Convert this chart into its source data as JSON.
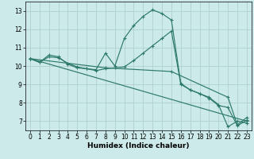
{
  "xlabel": "Humidex (Indice chaleur)",
  "xlim": [
    -0.5,
    23.5
  ],
  "ylim": [
    6.5,
    13.5
  ],
  "xticks": [
    0,
    1,
    2,
    3,
    4,
    5,
    6,
    7,
    8,
    9,
    10,
    11,
    12,
    13,
    14,
    15,
    16,
    17,
    18,
    19,
    20,
    21,
    22,
    23
  ],
  "yticks": [
    7,
    8,
    9,
    10,
    11,
    12,
    13
  ],
  "bg_color": "#cdeaea",
  "grid_color": "#b0cfcf",
  "line_color": "#2d7a6a",
  "line1_x": [
    0,
    1,
    2,
    3,
    4,
    5,
    6,
    7,
    8,
    9,
    10,
    11,
    12,
    13,
    14,
    15,
    16,
    17,
    18,
    19,
    20,
    21,
    22,
    23
  ],
  "line1_y": [
    10.4,
    10.2,
    10.6,
    10.5,
    10.1,
    9.9,
    9.85,
    9.8,
    10.7,
    10.0,
    11.5,
    12.2,
    12.7,
    13.05,
    12.85,
    12.5,
    9.05,
    8.7,
    8.5,
    8.3,
    7.9,
    6.7,
    7.0,
    6.9
  ],
  "line2_x": [
    0,
    1,
    2,
    3,
    4,
    5,
    6,
    7,
    8,
    9,
    10,
    11,
    12,
    13,
    14,
    15,
    16,
    17,
    18,
    19,
    20,
    21,
    22,
    23
  ],
  "line2_y": [
    10.4,
    10.2,
    10.5,
    10.45,
    10.15,
    9.95,
    9.85,
    9.75,
    9.85,
    9.9,
    9.95,
    10.3,
    10.7,
    11.1,
    11.5,
    11.9,
    9.0,
    8.7,
    8.5,
    8.25,
    7.85,
    7.75,
    6.75,
    7.05
  ],
  "line3_x": [
    0,
    23
  ],
  "line3_y": [
    10.4,
    7.0
  ],
  "line4_x": [
    0,
    8,
    15,
    21,
    22,
    23
  ],
  "line4_y": [
    10.4,
    9.9,
    9.7,
    8.3,
    6.8,
    7.2
  ]
}
